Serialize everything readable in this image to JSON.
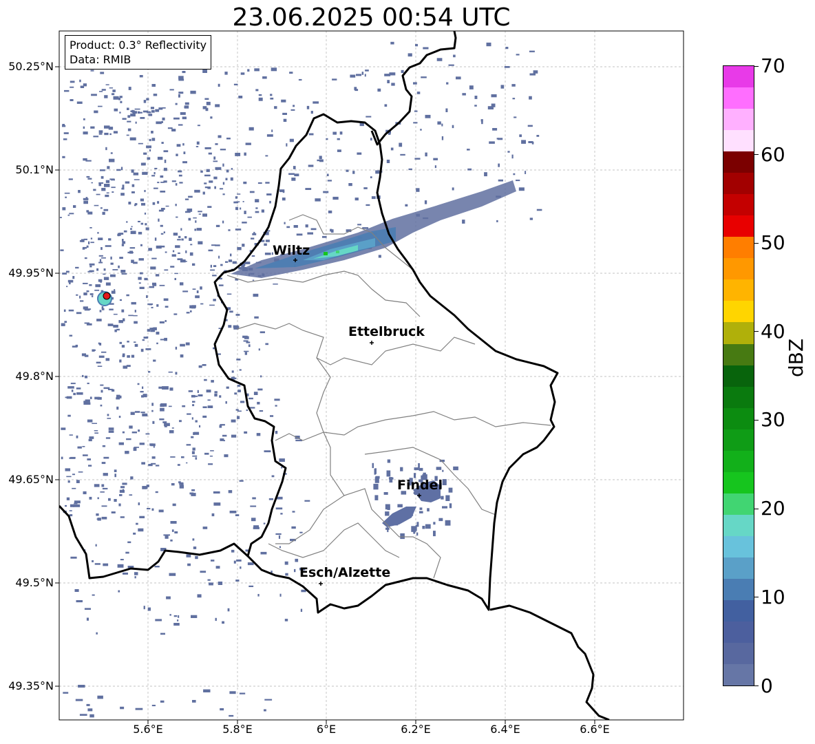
{
  "title": "23.06.2025 00:54 UTC",
  "info": {
    "product": "Product: 0.3° Reflectivity",
    "data": "Data: RMIB"
  },
  "colorbar": {
    "label": "dBZ",
    "ticks": [
      "0",
      "10",
      "20",
      "30",
      "40",
      "50",
      "60",
      "70"
    ],
    "colors": [
      "#6676a6",
      "#58689f",
      "#4c5f9e",
      "#4260a0",
      "#4a7db3",
      "#5aa0c8",
      "#68c2dc",
      "#66d7c6",
      "#41d572",
      "#16c51e",
      "#12b01a",
      "#0f9c16",
      "#0c8c10",
      "#0a7a0e",
      "#08640c",
      "#477a12",
      "#b0b00a",
      "#ffd500",
      "#ffb400",
      "#ff9800",
      "#ff7e00",
      "#e80000",
      "#c40000",
      "#a20000",
      "#7b0000",
      "#ffe0ff",
      "#ffb0ff",
      "#ff6eff",
      "#e83ae8"
    ]
  },
  "axes": {
    "lat_labels": [
      "50.25°N",
      "50.1°N",
      "49.95°N",
      "49.8°N",
      "49.65°N",
      "49.5°N",
      "49.35°N"
    ],
    "lon_labels": [
      "5.6°E",
      "5.8°E",
      "6°E",
      "6.2°E",
      "6.4°E",
      "6.6°E"
    ]
  },
  "cities": [
    {
      "name": "Wiltz"
    },
    {
      "name": "Ettelbruck"
    },
    {
      "name": "Findel"
    },
    {
      "name": "Esch/Alzette"
    }
  ],
  "colors": {
    "echo": "#6070a0",
    "strong_echo": "#5aa0c8",
    "radar_site": "#e31a1c",
    "border": "#000000",
    "district": "#808080",
    "grid": "#b0b0b0"
  }
}
